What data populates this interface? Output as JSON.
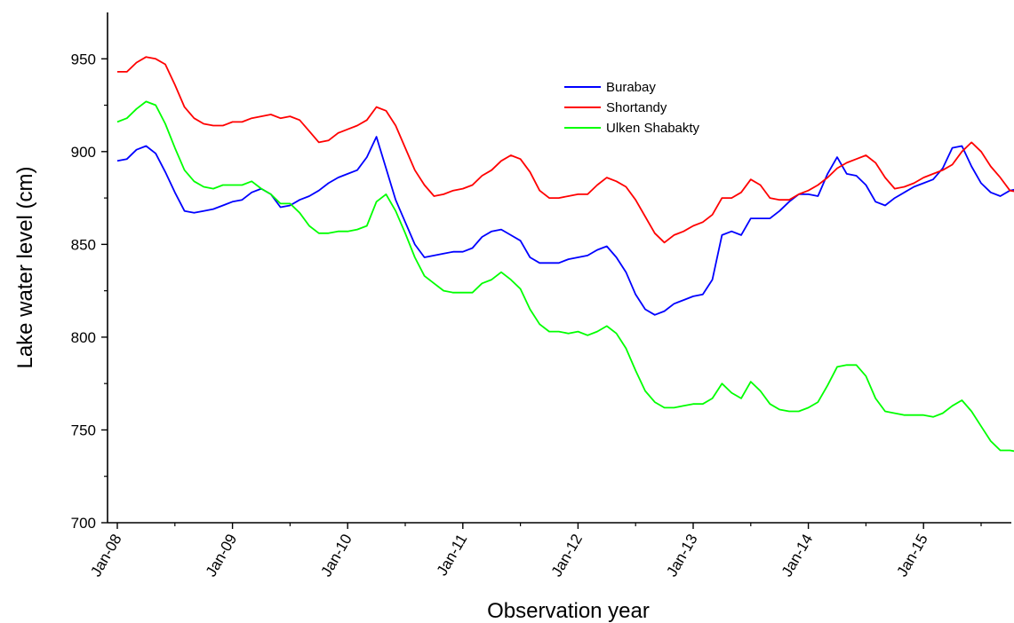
{
  "chart_data": {
    "type": "line",
    "title": "",
    "xlabel": "Observation year",
    "ylabel": "Lake water level (cm)",
    "ylim": [
      700,
      975
    ],
    "yticks": [
      700,
      750,
      800,
      850,
      900,
      950
    ],
    "xticks": [
      "Jan-08",
      "Jan-09",
      "Jan-10",
      "Jan-11",
      "Jan-12",
      "Jan-13",
      "Jan-14",
      "Jan-15"
    ],
    "x_start": "Jan-08",
    "x_interval": "month",
    "grid": false,
    "legend_position": "top-center",
    "series": [
      {
        "name": "Burabay",
        "color": "#0000ff",
        "values": [
          895,
          896,
          901,
          903,
          899,
          889,
          878,
          868,
          867,
          868,
          869,
          871,
          873,
          874,
          878,
          880,
          877,
          870,
          871,
          874,
          876,
          879,
          883,
          886,
          888,
          890,
          897,
          908,
          891,
          874,
          862,
          850,
          843,
          844,
          845,
          846,
          846,
          848,
          854,
          857,
          858,
          855,
          852,
          843,
          840,
          840,
          840,
          842,
          843,
          844,
          847,
          849,
          843,
          835,
          823,
          815,
          812,
          814,
          818,
          820,
          822,
          823,
          831,
          855,
          857,
          855,
          864,
          864,
          864,
          868,
          873,
          877,
          877,
          876,
          888,
          897,
          888,
          887,
          882,
          873,
          871,
          875,
          878,
          881,
          883,
          885,
          891,
          902,
          903,
          892,
          883,
          878,
          876,
          879,
          880
        ]
      },
      {
        "name": "Shortandy",
        "color": "#ff0000",
        "values": [
          943,
          943,
          948,
          951,
          950,
          947,
          936,
          924,
          918,
          915,
          914,
          914,
          916,
          916,
          918,
          919,
          920,
          918,
          919,
          917,
          911,
          905,
          906,
          910,
          912,
          914,
          917,
          924,
          922,
          914,
          902,
          890,
          882,
          876,
          877,
          879,
          880,
          882,
          887,
          890,
          895,
          898,
          896,
          889,
          879,
          875,
          875,
          876,
          877,
          877,
          882,
          886,
          884,
          881,
          874,
          865,
          856,
          851,
          855,
          857,
          860,
          862,
          866,
          875,
          875,
          878,
          885,
          882,
          875,
          874,
          874,
          877,
          879,
          882,
          886,
          891,
          894,
          896,
          898,
          894,
          886,
          880,
          881,
          883,
          886,
          888,
          890,
          893,
          900,
          905,
          900,
          892,
          886,
          879,
          878,
          881
        ]
      },
      {
        "name": "Ulken Shabakty",
        "color": "#00ff00",
        "values": [
          916,
          918,
          923,
          927,
          925,
          915,
          902,
          890,
          884,
          881,
          880,
          882,
          882,
          882,
          884,
          880,
          877,
          872,
          872,
          867,
          860,
          856,
          856,
          857,
          857,
          858,
          860,
          873,
          877,
          868,
          856,
          843,
          833,
          829,
          825,
          824,
          824,
          824,
          829,
          831,
          835,
          831,
          826,
          815,
          807,
          803,
          803,
          802,
          803,
          801,
          803,
          806,
          802,
          794,
          782,
          771,
          765,
          762,
          762,
          763,
          764,
          764,
          767,
          775,
          770,
          767,
          776,
          771,
          764,
          761,
          760,
          760,
          762,
          765,
          774,
          784,
          785,
          785,
          779,
          767,
          760,
          759,
          758,
          758,
          758,
          757,
          759,
          763,
          766,
          760,
          752,
          744,
          739,
          739,
          738
        ]
      }
    ]
  }
}
